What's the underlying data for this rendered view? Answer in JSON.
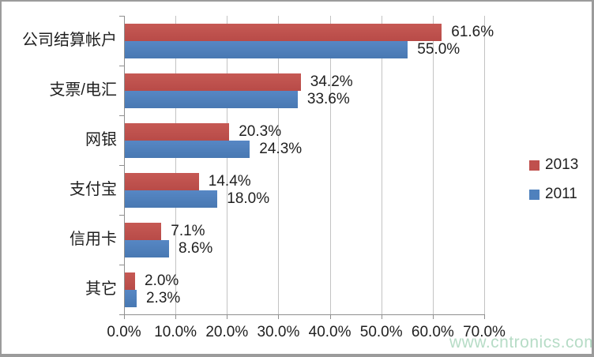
{
  "chart_data": {
    "type": "bar",
    "orientation": "horizontal",
    "title": "",
    "xlabel": "",
    "ylabel": "",
    "xlim": [
      0,
      70
    ],
    "grid": "vertical",
    "legend_position": "right",
    "categories": [
      "公司结算帐户",
      "支票/电汇",
      "网银",
      "支付宝",
      "信用卡",
      "其它"
    ],
    "series": [
      {
        "name": "2013",
        "color": "#c0504d",
        "values": [
          61.6,
          34.2,
          20.3,
          14.4,
          7.1,
          2.0
        ],
        "value_labels": [
          "61.6%",
          "34.2%",
          "20.3%",
          "14.4%",
          "7.1%",
          "2.0%"
        ]
      },
      {
        "name": "2011",
        "color": "#4f81bd",
        "values": [
          55.0,
          33.6,
          24.3,
          18.0,
          8.6,
          2.3
        ],
        "value_labels": [
          "55.0%",
          "33.6%",
          "24.3%",
          "18.0%",
          "8.6%",
          "2.3%"
        ]
      }
    ],
    "x_ticks": [
      "0.0%",
      "10.0%",
      "20.0%",
      "30.0%",
      "40.0%",
      "50.0%",
      "60.0%",
      "70.0%"
    ]
  },
  "legend": {
    "items": [
      {
        "label": "2013",
        "color": "#c0504d"
      },
      {
        "label": "2011",
        "color": "#4f81bd"
      }
    ]
  },
  "watermark": {
    "text": "www.cntronics.com",
    "color": "#b6dcc6"
  }
}
